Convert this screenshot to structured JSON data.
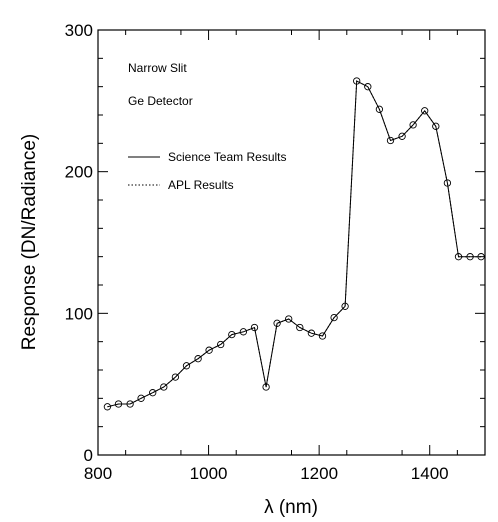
{
  "chart_data": {
    "type": "line",
    "xlabel": "λ (nm)",
    "ylabel": "Response (DN/Radiance)",
    "xlim": [
      800,
      1500
    ],
    "ylim": [
      0,
      300
    ],
    "x_ticks": [
      800,
      1000,
      1200,
      1400
    ],
    "x_tick_labels": [
      "800",
      "1000",
      "1200",
      "1400"
    ],
    "y_ticks": [
      0,
      100,
      200,
      300
    ],
    "y_tick_labels": [
      "0",
      "100",
      "200",
      "300"
    ],
    "grid": false,
    "annotations": [
      "Narrow Slit",
      "Ge Detector"
    ],
    "legend": {
      "placement": "top-left",
      "entries": [
        {
          "label": "Science Team Results",
          "style": "solid"
        },
        {
          "label": "APL Results",
          "style": "dotted"
        }
      ]
    },
    "series": [
      {
        "name": "Science Team Results",
        "style": "solid",
        "x": [
          817,
          837,
          858,
          878,
          899,
          919,
          940,
          960,
          981,
          1001,
          1022,
          1042,
          1063,
          1083,
          1104,
          1124,
          1145,
          1165,
          1186,
          1206,
          1227,
          1247,
          1268,
          1288,
          1309,
          1329,
          1350,
          1370,
          1391,
          1411,
          1432,
          1452,
          1473,
          1493
        ],
        "y": [
          34,
          36,
          36,
          40,
          44,
          48,
          55,
          63,
          68,
          74,
          78,
          85,
          87,
          90,
          48,
          93,
          96,
          90,
          86,
          84,
          97,
          105,
          264,
          260,
          244,
          222,
          225,
          233,
          243,
          232,
          192,
          140,
          140,
          140
        ]
      },
      {
        "name": "APL Results",
        "style": "dotted",
        "x": [
          817,
          837,
          858,
          878,
          899,
          919,
          940,
          960,
          981,
          1001,
          1022,
          1042,
          1063,
          1083,
          1104,
          1124,
          1145,
          1165,
          1186,
          1206,
          1227,
          1247,
          1268,
          1288,
          1309,
          1329,
          1350,
          1370,
          1391,
          1411,
          1432,
          1452,
          1473,
          1493
        ],
        "y": [
          34,
          36,
          36,
          40,
          44,
          48,
          55,
          63,
          68,
          74,
          78,
          85,
          87,
          90,
          48,
          93,
          96,
          90,
          86,
          84,
          97,
          105,
          264,
          260,
          244,
          222,
          225,
          233,
          243,
          232,
          192,
          140,
          140,
          140
        ]
      }
    ],
    "markers": {
      "x": [
        817,
        837,
        858,
        878,
        899,
        919,
        940,
        960,
        981,
        1001,
        1022,
        1042,
        1063,
        1083,
        1104,
        1124,
        1145,
        1165,
        1186,
        1206,
        1227,
        1247,
        1268,
        1288,
        1309,
        1329,
        1350,
        1370,
        1391,
        1411,
        1432,
        1452,
        1473,
        1493
      ],
      "y": [
        34,
        36,
        36,
        40,
        44,
        48,
        55,
        63,
        68,
        74,
        78,
        85,
        87,
        90,
        48,
        93,
        96,
        90,
        86,
        84,
        97,
        105,
        264,
        260,
        244,
        222,
        225,
        233,
        243,
        232,
        192,
        140,
        140,
        140
      ]
    }
  }
}
